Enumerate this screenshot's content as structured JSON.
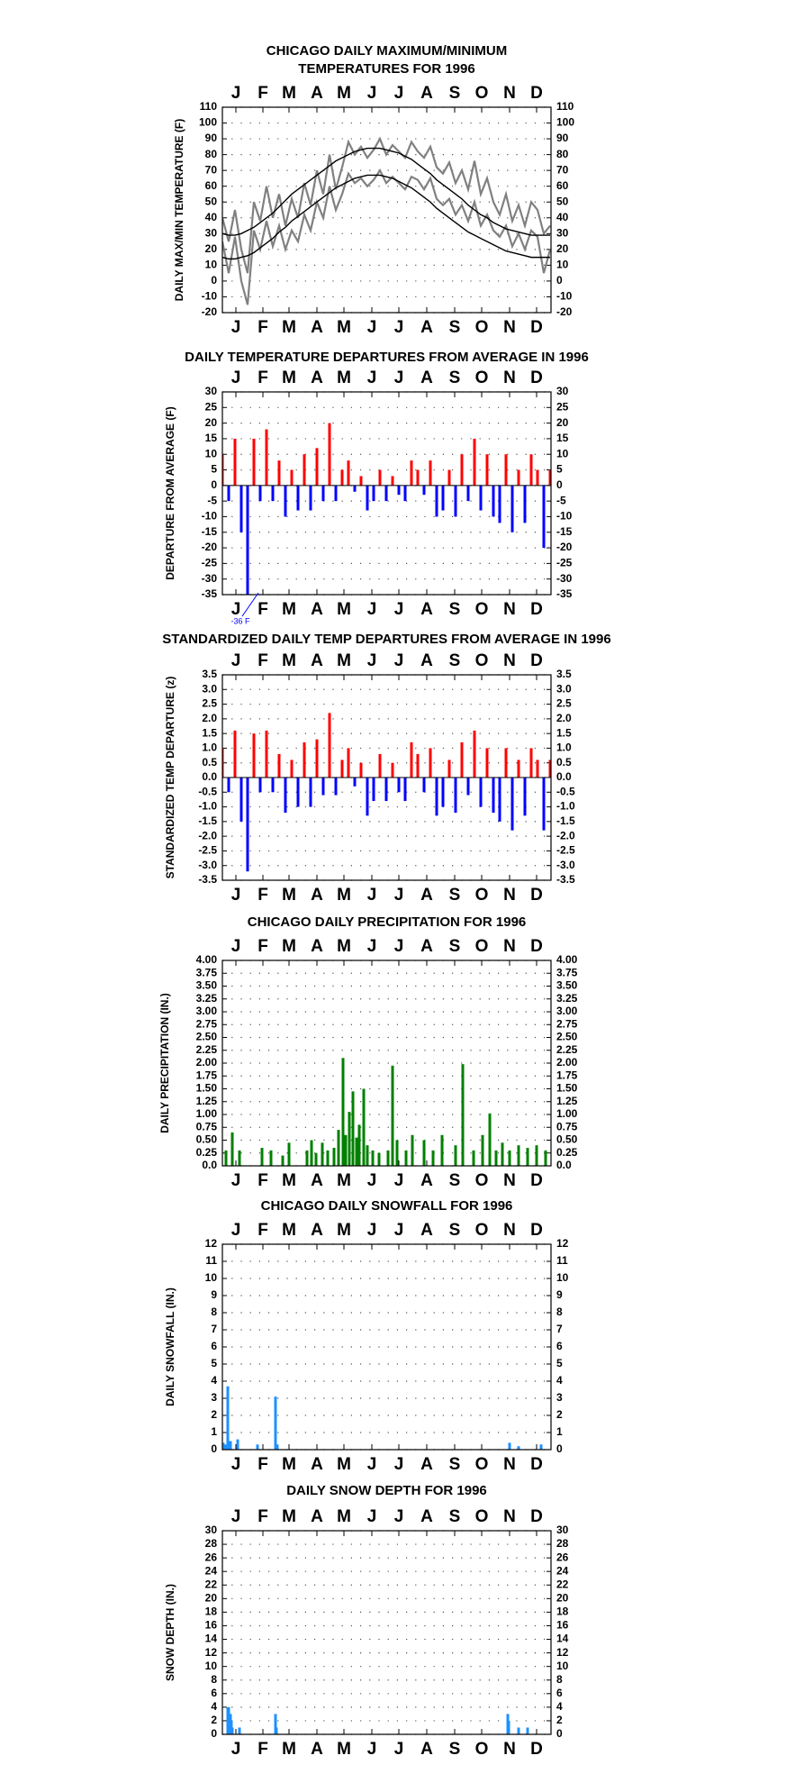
{
  "chart_data": [
    {
      "type": "line",
      "title": [
        "CHICAGO DAILY MAXIMUM/MINIMUM",
        "TEMPERATURES FOR 1996"
      ],
      "y_label": "DAILY MAX/MIN TEMPERATURE (F)",
      "xlim": [
        1,
        366
      ],
      "xticks": [
        {
          "value": 16,
          "label": "J"
        },
        {
          "value": 46,
          "label": "F"
        },
        {
          "value": 75,
          "label": "M"
        },
        {
          "value": 106,
          "label": "A"
        },
        {
          "value": 136,
          "label": "M"
        },
        {
          "value": 167,
          "label": "J"
        },
        {
          "value": 197,
          "label": "J"
        },
        {
          "value": 228,
          "label": "A"
        },
        {
          "value": 259,
          "label": "S"
        },
        {
          "value": 289,
          "label": "O"
        },
        {
          "value": 320,
          "label": "N"
        },
        {
          "value": 350,
          "label": "D"
        }
      ],
      "ylim": [
        -20,
        110
      ],
      "yticks": [
        -20,
        -10,
        0,
        10,
        20,
        30,
        40,
        50,
        60,
        70,
        80,
        90,
        100,
        110
      ],
      "grid": true,
      "x": [
        1,
        8,
        15,
        22,
        29,
        36,
        43,
        50,
        57,
        64,
        71,
        78,
        85,
        92,
        99,
        106,
        113,
        120,
        127,
        134,
        141,
        148,
        155,
        162,
        169,
        176,
        183,
        190,
        197,
        204,
        211,
        218,
        225,
        232,
        239,
        246,
        253,
        260,
        267,
        274,
        281,
        288,
        295,
        302,
        309,
        316,
        323,
        330,
        337,
        344,
        351,
        358,
        365
      ],
      "series": [
        {
          "color": "#808080",
          "values": [
            40,
            25,
            45,
            20,
            5,
            50,
            38,
            60,
            40,
            55,
            35,
            52,
            40,
            62,
            48,
            70,
            55,
            80,
            58,
            72,
            88,
            80,
            85,
            78,
            83,
            90,
            80,
            86,
            82,
            78,
            88,
            82,
            78,
            85,
            72,
            68,
            75,
            62,
            70,
            58,
            76,
            55,
            65,
            50,
            42,
            55,
            38,
            48,
            35,
            50,
            45,
            30,
            35
          ]
        },
        {
          "color": "#808080",
          "values": [
            25,
            5,
            28,
            0,
            -15,
            32,
            20,
            38,
            22,
            35,
            20,
            32,
            25,
            42,
            32,
            50,
            40,
            60,
            45,
            55,
            68,
            62,
            65,
            60,
            64,
            70,
            62,
            66,
            62,
            58,
            66,
            64,
            58,
            65,
            52,
            48,
            52,
            42,
            48,
            38,
            50,
            35,
            42,
            32,
            28,
            35,
            22,
            30,
            20,
            32,
            28,
            5,
            20
          ]
        },
        {
          "color": "#000000",
          "values": [
            30,
            29,
            29,
            30,
            32,
            34,
            37,
            40,
            43,
            47,
            51,
            55,
            58,
            61,
            64,
            67,
            70,
            73,
            76,
            78,
            80,
            82,
            83,
            84,
            84,
            84,
            83,
            82,
            81,
            79,
            77,
            74,
            71,
            68,
            64,
            61,
            58,
            55,
            52,
            48,
            45,
            42,
            40,
            37,
            35,
            33,
            32,
            31,
            30,
            29,
            29,
            29,
            29
          ]
        },
        {
          "color": "#000000",
          "values": [
            15,
            14,
            14,
            15,
            16,
            18,
            21,
            24,
            27,
            31,
            34,
            38,
            41,
            44,
            47,
            50,
            53,
            56,
            59,
            61,
            63,
            65,
            66,
            67,
            67,
            67,
            66,
            65,
            63,
            61,
            59,
            56,
            53,
            50,
            46,
            43,
            40,
            37,
            34,
            31,
            29,
            27,
            25,
            23,
            21,
            19,
            18,
            17,
            16,
            15,
            15,
            15,
            15
          ]
        }
      ]
    },
    {
      "type": "bar",
      "title": "DAILY TEMPERATURE DEPARTURES FROM AVERAGE IN 1996",
      "y_label": "DEPARTURE FROM AVERAGE (F)",
      "annotation": "-36 F",
      "xlim": [
        1,
        366
      ],
      "xticks": [
        {
          "value": 16,
          "label": "J"
        },
        {
          "value": 46,
          "label": "F"
        },
        {
          "value": 75,
          "label": "M"
        },
        {
          "value": 106,
          "label": "A"
        },
        {
          "value": 136,
          "label": "M"
        },
        {
          "value": 167,
          "label": "J"
        },
        {
          "value": 197,
          "label": "J"
        },
        {
          "value": 228,
          "label": "A"
        },
        {
          "value": 259,
          "label": "S"
        },
        {
          "value": 289,
          "label": "O"
        },
        {
          "value": 320,
          "label": "N"
        },
        {
          "value": 350,
          "label": "D"
        }
      ],
      "ylim": [
        -35,
        30
      ],
      "yticks": [
        -35,
        -30,
        -25,
        -20,
        -15,
        -10,
        -5,
        0,
        5,
        10,
        15,
        20,
        25,
        30
      ],
      "grid": true,
      "pos_color": "#ff0000",
      "neg_color": "#0000ff",
      "x": [
        1,
        8,
        15,
        22,
        29,
        36,
        43,
        50,
        57,
        64,
        71,
        78,
        85,
        92,
        99,
        106,
        113,
        120,
        127,
        134,
        141,
        148,
        155,
        162,
        169,
        176,
        183,
        190,
        197,
        204,
        211,
        218,
        225,
        232,
        239,
        246,
        253,
        260,
        267,
        274,
        281,
        288,
        295,
        302,
        309,
        316,
        323,
        330,
        337,
        344,
        351,
        358,
        365
      ],
      "values": [
        10,
        -5,
        15,
        -15,
        -36,
        15,
        -5,
        18,
        -5,
        8,
        -10,
        5,
        -8,
        10,
        -8,
        12,
        -5,
        20,
        -5,
        5,
        8,
        -2,
        3,
        -8,
        -5,
        5,
        -5,
        3,
        -3,
        -5,
        8,
        5,
        -3,
        8,
        -10,
        -8,
        5,
        -10,
        10,
        -5,
        15,
        -8,
        10,
        -10,
        -12,
        10,
        -15,
        5,
        -12,
        10,
        5,
        -20,
        5
      ]
    },
    {
      "type": "bar",
      "title": "STANDARDIZED DAILY TEMP DEPARTURES FROM AVERAGE IN 1996",
      "y_label": "STANDARDIZED TEMP DEPARTURE (z)",
      "xlim": [
        1,
        366
      ],
      "xticks": [
        {
          "value": 16,
          "label": "J"
        },
        {
          "value": 46,
          "label": "F"
        },
        {
          "value": 75,
          "label": "M"
        },
        {
          "value": 106,
          "label": "A"
        },
        {
          "value": 136,
          "label": "M"
        },
        {
          "value": 167,
          "label": "J"
        },
        {
          "value": 197,
          "label": "J"
        },
        {
          "value": 228,
          "label": "A"
        },
        {
          "value": 259,
          "label": "S"
        },
        {
          "value": 289,
          "label": "O"
        },
        {
          "value": 320,
          "label": "N"
        },
        {
          "value": 350,
          "label": "D"
        }
      ],
      "ylim": [
        -3.5,
        3.5
      ],
      "yticks": [
        -3.5,
        {
          "value": -3,
          "label": "-3.0"
        },
        -2.5,
        {
          "value": -2,
          "label": "-2.0"
        },
        -1.5,
        {
          "value": -1,
          "label": "-1.0"
        },
        -0.5,
        {
          "value": 0,
          "label": "0.0"
        },
        0.5,
        {
          "value": 1,
          "label": "1.0"
        },
        1.5,
        {
          "value": 2,
          "label": "2.0"
        },
        2.5,
        {
          "value": 3,
          "label": "3.0"
        },
        3.5
      ],
      "grid": true,
      "pos_color": "#ff0000",
      "neg_color": "#0000ff",
      "x": [
        1,
        8,
        15,
        22,
        29,
        36,
        43,
        50,
        57,
        64,
        71,
        78,
        85,
        92,
        99,
        106,
        113,
        120,
        127,
        134,
        141,
        148,
        155,
        162,
        169,
        176,
        183,
        190,
        197,
        204,
        211,
        218,
        225,
        232,
        239,
        246,
        253,
        260,
        267,
        274,
        281,
        288,
        295,
        302,
        309,
        316,
        323,
        330,
        337,
        344,
        351,
        358,
        365
      ],
      "values": [
        1.0,
        -0.5,
        1.6,
        -1.5,
        -3.2,
        1.5,
        -0.5,
        1.6,
        -0.5,
        0.8,
        -1.2,
        0.6,
        -1.0,
        1.2,
        -1.0,
        1.3,
        -0.6,
        2.2,
        -0.6,
        0.6,
        1.0,
        -0.3,
        0.5,
        -1.3,
        -0.8,
        0.8,
        -0.8,
        0.5,
        -0.5,
        -0.8,
        1.2,
        0.8,
        -0.5,
        1.0,
        -1.3,
        -1.0,
        0.6,
        -1.2,
        1.2,
        -0.6,
        1.6,
        -1.0,
        1.0,
        -1.2,
        -1.5,
        1.0,
        -1.8,
        0.6,
        -1.3,
        1.0,
        0.6,
        -1.8,
        0.6
      ]
    },
    {
      "type": "bar",
      "title": "CHICAGO DAILY PRECIPITATION FOR 1996",
      "y_label": "DAILY PRECIPITATION (IN.)",
      "color": "#008000",
      "xlim": [
        1,
        366
      ],
      "xticks": [
        {
          "value": 16,
          "label": "J"
        },
        {
          "value": 46,
          "label": "F"
        },
        {
          "value": 75,
          "label": "M"
        },
        {
          "value": 106,
          "label": "A"
        },
        {
          "value": 136,
          "label": "M"
        },
        {
          "value": 167,
          "label": "J"
        },
        {
          "value": 197,
          "label": "J"
        },
        {
          "value": 228,
          "label": "A"
        },
        {
          "value": 259,
          "label": "S"
        },
        {
          "value": 289,
          "label": "O"
        },
        {
          "value": 320,
          "label": "N"
        },
        {
          "value": 350,
          "label": "D"
        }
      ],
      "ylim": [
        0,
        4
      ],
      "yticks": [
        {
          "value": 0,
          "label": "0.0"
        },
        0.25,
        {
          "value": 0.5,
          "label": "0.50"
        },
        0.75,
        {
          "value": 1,
          "label": "1.00"
        },
        1.25,
        {
          "value": 1.5,
          "label": "1.50"
        },
        1.75,
        {
          "value": 2,
          "label": "2.00"
        },
        2.25,
        {
          "value": 2.5,
          "label": "2.50"
        },
        2.75,
        {
          "value": 3,
          "label": "3.00"
        },
        3.25,
        {
          "value": 3.5,
          "label": "3.50"
        },
        3.75,
        {
          "value": 4,
          "label": "4.00"
        }
      ],
      "grid": true,
      "x": [
        5,
        12,
        20,
        45,
        55,
        68,
        75,
        95,
        100,
        105,
        112,
        118,
        125,
        130,
        135,
        138,
        142,
        146,
        150,
        153,
        158,
        162,
        168,
        175,
        185,
        190,
        195,
        205,
        212,
        225,
        235,
        245,
        260,
        268,
        280,
        290,
        298,
        305,
        312,
        320,
        330,
        340,
        350,
        360
      ],
      "values": [
        0.3,
        0.65,
        0.3,
        0.35,
        0.3,
        0.2,
        0.45,
        0.3,
        0.5,
        0.25,
        0.45,
        0.3,
        0.35,
        0.7,
        2.1,
        0.6,
        1.05,
        1.45,
        0.55,
        0.8,
        1.5,
        0.4,
        0.3,
        0.25,
        0.3,
        1.95,
        0.5,
        0.3,
        0.6,
        0.5,
        0.3,
        0.6,
        0.4,
        1.98,
        0.3,
        0.6,
        1.02,
        0.3,
        0.45,
        0.3,
        0.4,
        0.35,
        0.4,
        0.3
      ]
    },
    {
      "type": "bar",
      "title": "CHICAGO DAILY SNOWFALL FOR 1996",
      "y_label": "DAILY SNOWFALL (IN.)",
      "color": "#1e90ff",
      "xlim": [
        1,
        366
      ],
      "xticks": [
        {
          "value": 16,
          "label": "J"
        },
        {
          "value": 46,
          "label": "F"
        },
        {
          "value": 75,
          "label": "M"
        },
        {
          "value": 106,
          "label": "A"
        },
        {
          "value": 136,
          "label": "M"
        },
        {
          "value": 167,
          "label": "J"
        },
        {
          "value": 197,
          "label": "J"
        },
        {
          "value": 228,
          "label": "A"
        },
        {
          "value": 259,
          "label": "S"
        },
        {
          "value": 289,
          "label": "O"
        },
        {
          "value": 320,
          "label": "N"
        },
        {
          "value": 350,
          "label": "D"
        }
      ],
      "ylim": [
        0,
        12
      ],
      "yticks": [
        0,
        1,
        2,
        3,
        4,
        5,
        6,
        7,
        8,
        9,
        10,
        11,
        12
      ],
      "grid": true,
      "x": [
        2,
        4,
        7,
        10,
        18,
        40,
        60,
        62,
        320,
        330,
        355
      ],
      "values": [
        0.4,
        0.3,
        3.7,
        0.5,
        0.6,
        0.3,
        3.1,
        0.3,
        0.4,
        0.2,
        0.3
      ]
    },
    {
      "type": "bar",
      "title": "DAILY SNOW DEPTH FOR 1996",
      "y_label": "SNOW DEPTH (IN.)",
      "color": "#1e90ff",
      "xlim": [
        1,
        366
      ],
      "xticks": [
        {
          "value": 16,
          "label": "J"
        },
        {
          "value": 46,
          "label": "F"
        },
        {
          "value": 75,
          "label": "M"
        },
        {
          "value": 106,
          "label": "A"
        },
        {
          "value": 136,
          "label": "M"
        },
        {
          "value": 167,
          "label": "J"
        },
        {
          "value": 197,
          "label": "J"
        },
        {
          "value": 228,
          "label": "A"
        },
        {
          "value": 259,
          "label": "S"
        },
        {
          "value": 289,
          "label": "O"
        },
        {
          "value": 320,
          "label": "N"
        },
        {
          "value": 350,
          "label": "D"
        }
      ],
      "ylim": [
        0,
        30
      ],
      "yticks": [
        0,
        2,
        4,
        6,
        8,
        10,
        12,
        14,
        16,
        18,
        20,
        22,
        24,
        26,
        28,
        30
      ],
      "grid": true,
      "x": [
        7,
        8,
        9,
        10,
        11,
        12,
        20,
        60,
        61,
        318,
        319,
        330,
        340
      ],
      "values": [
        4,
        4,
        3,
        3,
        2,
        1,
        1,
        3,
        1,
        3,
        2,
        1,
        1
      ]
    }
  ]
}
